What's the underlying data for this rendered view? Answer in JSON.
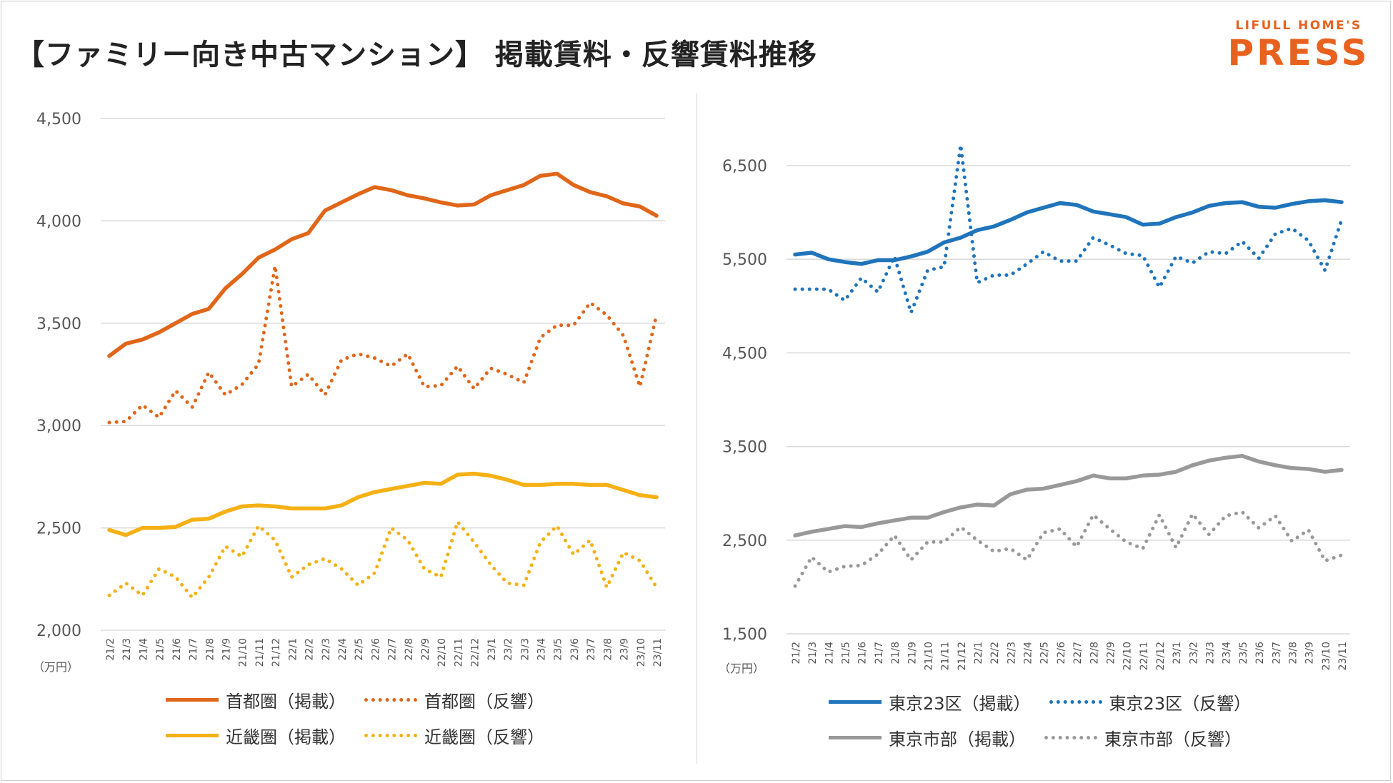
{
  "title": "【ファミリー向き中古マンション】 掲載賃料・反響賃料推移",
  "logo": {
    "top": "LIFULL HOME'S",
    "main": "PRESS"
  },
  "months": [
    "21/2",
    "21/3",
    "21/4",
    "21/5",
    "21/6",
    "21/7",
    "21/8",
    "21/9",
    "21/10",
    "21/11",
    "21/12",
    "22/1",
    "22/2",
    "22/3",
    "22/4",
    "22/5",
    "22/6",
    "22/7",
    "22/8",
    "22/9",
    "22/10",
    "22/11",
    "22/12",
    "23/1",
    "23/2",
    "23/3",
    "23/4",
    "23/5",
    "23/6",
    "23/7",
    "23/8",
    "23/9",
    "23/10",
    "23/11"
  ],
  "chart_data": [
    {
      "type": "line",
      "id": "left",
      "unit_label": "（万円）",
      "ylim": [
        2000,
        4500
      ],
      "yticks": [
        2000,
        2500,
        3000,
        3500,
        4000,
        4500
      ],
      "tick_labels": [
        "2,000",
        "2,500",
        "3,000",
        "3,500",
        "4,000",
        "4,500"
      ],
      "series": [
        {
          "name": "首都圏（掲載）",
          "color": "#e0661a",
          "dashed": false,
          "values": [
            3340,
            3400,
            3420,
            3455,
            3500,
            3545,
            3570,
            3670,
            3740,
            3820,
            3860,
            3910,
            3940,
            4050,
            4090,
            4130,
            4165,
            4150,
            4125,
            4110,
            4090,
            4075,
            4080,
            4125,
            4150,
            4175,
            4220,
            4230,
            4175,
            4140,
            4120,
            4085,
            4070,
            4025
          ]
        },
        {
          "name": "首都圏（反響）",
          "color": "#e0661a",
          "dashed": true,
          "values": [
            3015,
            3020,
            3100,
            3040,
            3170,
            3090,
            3260,
            3150,
            3200,
            3300,
            3780,
            3190,
            3250,
            3150,
            3320,
            3350,
            3330,
            3290,
            3350,
            3190,
            3195,
            3290,
            3180,
            3280,
            3250,
            3210,
            3430,
            3490,
            3490,
            3600,
            3540,
            3440,
            3190,
            3540
          ]
        },
        {
          "name": "近畿圏（掲載）",
          "color": "#f5b014",
          "dashed": false,
          "values": [
            2490,
            2465,
            2500,
            2500,
            2505,
            2540,
            2545,
            2580,
            2605,
            2610,
            2605,
            2595,
            2595,
            2595,
            2610,
            2650,
            2675,
            2690,
            2705,
            2720,
            2715,
            2760,
            2765,
            2755,
            2735,
            2710,
            2710,
            2715,
            2715,
            2710,
            2710,
            2685,
            2660,
            2650
          ]
        },
        {
          "name": "近畿圏（反響）",
          "color": "#f5b014",
          "dashed": true,
          "values": [
            2170,
            2230,
            2170,
            2300,
            2260,
            2160,
            2260,
            2410,
            2360,
            2510,
            2440,
            2260,
            2320,
            2350,
            2300,
            2220,
            2280,
            2500,
            2440,
            2300,
            2260,
            2530,
            2430,
            2320,
            2230,
            2220,
            2430,
            2510,
            2370,
            2440,
            2210,
            2380,
            2340,
            2210
          ]
        }
      ]
    },
    {
      "type": "line",
      "id": "right",
      "unit_label": "（万円）",
      "ylim": [
        1500,
        6500
      ],
      "yticks": [
        1500,
        2500,
        3500,
        4500,
        5500,
        6500
      ],
      "tick_labels": [
        "1,500",
        "2,500",
        "3,500",
        "4,500",
        "5,500",
        "6,500"
      ],
      "series": [
        {
          "name": "東京23区（掲載）",
          "color": "#1f74bb",
          "dashed": false,
          "values": [
            5550,
            5570,
            5500,
            5470,
            5450,
            5490,
            5490,
            5530,
            5580,
            5680,
            5730,
            5810,
            5850,
            5920,
            6000,
            6050,
            6100,
            6080,
            6010,
            5980,
            5950,
            5870,
            5880,
            5950,
            6000,
            6070,
            6100,
            6110,
            6060,
            6050,
            6090,
            6120,
            6130,
            6110
          ]
        },
        {
          "name": "東京23区（反響）",
          "color": "#1f74bb",
          "dashed": true,
          "values": [
            5180,
            5180,
            5180,
            5060,
            5300,
            5150,
            5530,
            4930,
            5380,
            5420,
            6720,
            5250,
            5330,
            5330,
            5450,
            5580,
            5480,
            5480,
            5730,
            5650,
            5560,
            5540,
            5200,
            5530,
            5460,
            5580,
            5560,
            5690,
            5510,
            5770,
            5830,
            5700,
            5380,
            5920
          ]
        },
        {
          "name": "東京市部（掲載）",
          "color": "#999999",
          "dashed": false,
          "values": [
            2550,
            2590,
            2620,
            2650,
            2640,
            2680,
            2710,
            2740,
            2740,
            2800,
            2850,
            2880,
            2870,
            2990,
            3040,
            3050,
            3090,
            3130,
            3190,
            3160,
            3160,
            3190,
            3200,
            3230,
            3300,
            3350,
            3380,
            3400,
            3340,
            3300,
            3270,
            3260,
            3230,
            3250
          ]
        },
        {
          "name": "東京市部（反響）",
          "color": "#999999",
          "dashed": true,
          "values": [
            2010,
            2320,
            2160,
            2220,
            2230,
            2350,
            2550,
            2290,
            2480,
            2480,
            2640,
            2500,
            2380,
            2410,
            2290,
            2580,
            2620,
            2430,
            2770,
            2620,
            2480,
            2410,
            2770,
            2420,
            2780,
            2560,
            2760,
            2800,
            2630,
            2760,
            2490,
            2610,
            2280,
            2340
          ]
        }
      ]
    }
  ]
}
